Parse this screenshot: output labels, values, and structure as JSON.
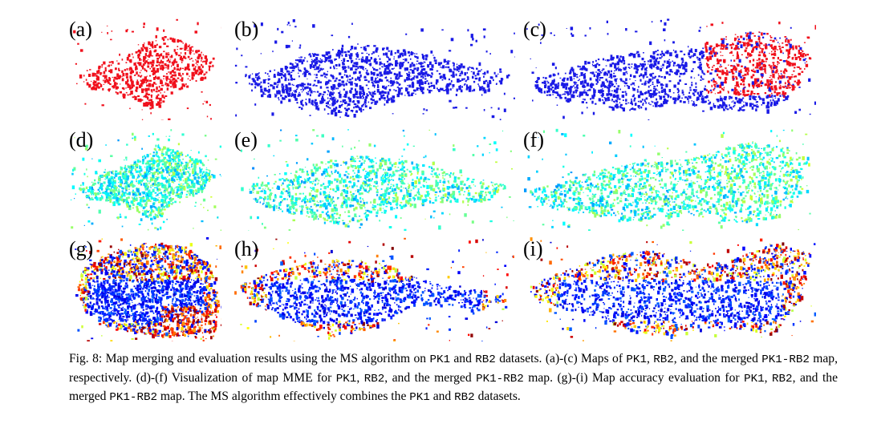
{
  "figure": {
    "panels": [
      {
        "label": "(a)",
        "style": "solid",
        "color": "#f0101c"
      },
      {
        "label": "(b)",
        "style": "solid",
        "color": "#1a1ae6"
      },
      {
        "label": "(c)",
        "style": "merged",
        "color": "#1a1ae6",
        "overlay_color": "#f0101c"
      },
      {
        "label": "(d)",
        "style": "mme"
      },
      {
        "label": "(e)",
        "style": "mme"
      },
      {
        "label": "(f)",
        "style": "mme"
      },
      {
        "label": "(g)",
        "style": "accuracy"
      },
      {
        "label": "(h)",
        "style": "accuracy"
      },
      {
        "label": "(i)",
        "style": "accuracy"
      }
    ],
    "caption_parts": [
      {
        "t": "Fig. 8: Map merging and evaluation results using the MS algorithm on ",
        "mono": false
      },
      {
        "t": "PK1",
        "mono": true
      },
      {
        "t": " and ",
        "mono": false
      },
      {
        "t": "RB2",
        "mono": true
      },
      {
        "t": " datasets. (a)-(c) Maps of ",
        "mono": false
      },
      {
        "t": "PK1",
        "mono": true
      },
      {
        "t": ", ",
        "mono": false
      },
      {
        "t": "RB2",
        "mono": true
      },
      {
        "t": ", and the merged ",
        "mono": false
      },
      {
        "t": "PK1-RB2",
        "mono": true
      },
      {
        "t": " map, respectively. (d)-(f) Visualization of map MME for ",
        "mono": false
      },
      {
        "t": "PK1",
        "mono": true
      },
      {
        "t": ", ",
        "mono": false
      },
      {
        "t": "RB2",
        "mono": true
      },
      {
        "t": ", and the merged ",
        "mono": false
      },
      {
        "t": "PK1-RB2",
        "mono": true
      },
      {
        "t": " map. (g)-(i) Map accuracy evaluation for ",
        "mono": false
      },
      {
        "t": "PK1",
        "mono": true
      },
      {
        "t": ", ",
        "mono": false
      },
      {
        "t": "RB2",
        "mono": true
      },
      {
        "t": ", and the merged ",
        "mono": false
      },
      {
        "t": "PK1-RB2",
        "mono": true
      },
      {
        "t": " map. The MS algorithm effectively combines the ",
        "mono": false
      },
      {
        "t": "PK1",
        "mono": true
      },
      {
        "t": " and ",
        "mono": false
      },
      {
        "t": "RB2",
        "mono": true
      },
      {
        "t": " datasets.",
        "mono": false
      }
    ]
  }
}
